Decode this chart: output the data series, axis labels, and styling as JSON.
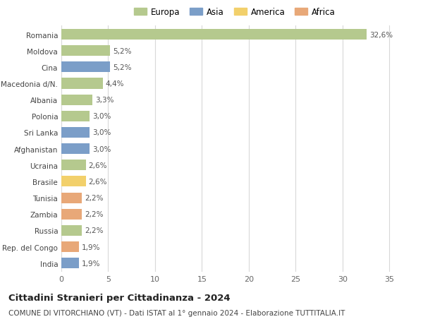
{
  "countries": [
    "Romania",
    "Moldova",
    "Cina",
    "Macedonia d/N.",
    "Albania",
    "Polonia",
    "Sri Lanka",
    "Afghanistan",
    "Ucraina",
    "Brasile",
    "Tunisia",
    "Zambia",
    "Russia",
    "Rep. del Congo",
    "India"
  ],
  "values": [
    32.6,
    5.2,
    5.2,
    4.4,
    3.3,
    3.0,
    3.0,
    3.0,
    2.6,
    2.6,
    2.2,
    2.2,
    2.2,
    1.9,
    1.9
  ],
  "labels": [
    "32,6%",
    "5,2%",
    "5,2%",
    "4,4%",
    "3,3%",
    "3,0%",
    "3,0%",
    "3,0%",
    "2,6%",
    "2,6%",
    "2,2%",
    "2,2%",
    "2,2%",
    "1,9%",
    "1,9%"
  ],
  "continents": [
    "Europa",
    "Europa",
    "Asia",
    "Europa",
    "Europa",
    "Europa",
    "Asia",
    "Asia",
    "Europa",
    "America",
    "Africa",
    "Africa",
    "Europa",
    "Africa",
    "Asia"
  ],
  "continent_colors": {
    "Europa": "#b5c98e",
    "Asia": "#7b9ec8",
    "America": "#f2d06b",
    "Africa": "#e8a878"
  },
  "legend_order": [
    "Europa",
    "Asia",
    "America",
    "Africa"
  ],
  "xlim": [
    0,
    37
  ],
  "xticks": [
    0,
    5,
    10,
    15,
    20,
    25,
    30,
    35
  ],
  "title": "Cittadini Stranieri per Cittadinanza - 2024",
  "subtitle": "COMUNE DI VITORCHIANO (VT) - Dati ISTAT al 1° gennaio 2024 - Elaborazione TUTTITALIA.IT",
  "bg_color": "#ffffff",
  "grid_color": "#d8d8d8",
  "bar_height": 0.65,
  "title_fontsize": 9.5,
  "subtitle_fontsize": 7.5,
  "label_fontsize": 7.5,
  "ytick_fontsize": 7.5,
  "xtick_fontsize": 8,
  "legend_fontsize": 8.5
}
